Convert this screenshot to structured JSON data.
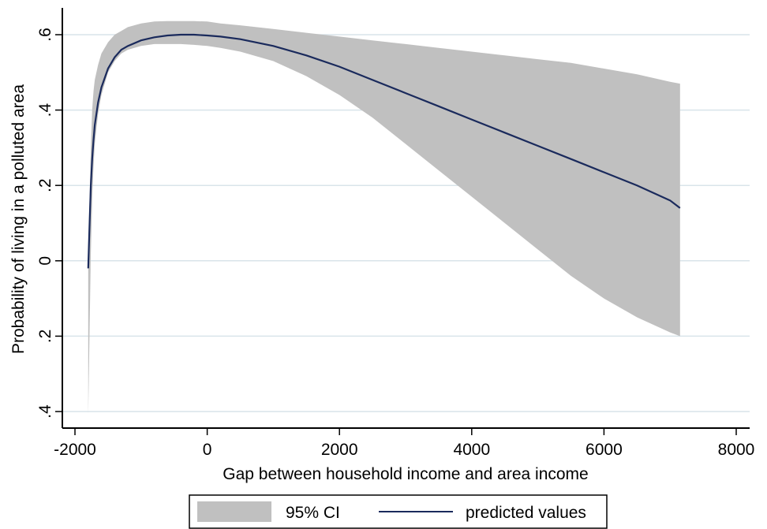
{
  "chart_data": {
    "type": "line",
    "xlabel": "Gap between household income and area income",
    "ylabel": "Probability of living in a polluted area",
    "xlim": [
      -2000,
      8000
    ],
    "ylim": [
      -0.4,
      0.6
    ],
    "x_ticks": [
      -2000,
      0,
      2000,
      4000,
      6000,
      8000
    ],
    "x_tick_labels": [
      "-2000",
      "0",
      "2000",
      "4000",
      "6000",
      "8000"
    ],
    "y_ticks": [
      -0.4,
      -0.2,
      0,
      0.2,
      0.4,
      0.6
    ],
    "y_tick_labels": [
      ".4",
      ".2",
      "0",
      ".2",
      ".4",
      ".6"
    ],
    "grid": true,
    "legend_position": "bottom",
    "colors": {
      "ci_fill": "#c0c0c0",
      "line": "#1a2a5c",
      "grid": "#d9e4ea"
    },
    "series": [
      {
        "name": "95% CI",
        "kind": "band",
        "x": [
          -1800,
          -1780,
          -1760,
          -1740,
          -1720,
          -1700,
          -1650,
          -1600,
          -1500,
          -1400,
          -1300,
          -1200,
          -1000,
          -800,
          -600,
          -400,
          -200,
          0,
          200,
          500,
          1000,
          1500,
          2000,
          2500,
          3000,
          3500,
          4000,
          4500,
          5000,
          5500,
          6000,
          6500,
          7000,
          7150
        ],
        "lower": [
          -0.41,
          -0.2,
          0.02,
          0.16,
          0.25,
          0.31,
          0.39,
          0.44,
          0.5,
          0.53,
          0.55,
          0.56,
          0.57,
          0.575,
          0.575,
          0.575,
          0.573,
          0.57,
          0.565,
          0.555,
          0.53,
          0.49,
          0.44,
          0.38,
          0.31,
          0.24,
          0.17,
          0.1,
          0.03,
          -0.04,
          -0.1,
          -0.15,
          -0.19,
          -0.2
        ],
        "upper": [
          0.04,
          0.15,
          0.3,
          0.4,
          0.45,
          0.48,
          0.52,
          0.55,
          0.58,
          0.6,
          0.61,
          0.62,
          0.63,
          0.635,
          0.636,
          0.636,
          0.636,
          0.635,
          0.63,
          0.625,
          0.615,
          0.605,
          0.595,
          0.585,
          0.575,
          0.565,
          0.555,
          0.545,
          0.535,
          0.525,
          0.51,
          0.495,
          0.475,
          0.47
        ]
      },
      {
        "name": "predicted values",
        "kind": "line",
        "x": [
          -1800,
          -1780,
          -1760,
          -1740,
          -1720,
          -1700,
          -1650,
          -1600,
          -1500,
          -1400,
          -1300,
          -1200,
          -1000,
          -800,
          -600,
          -400,
          -200,
          0,
          200,
          500,
          1000,
          1500,
          2000,
          2500,
          3000,
          3500,
          4000,
          4500,
          5000,
          5500,
          6000,
          6500,
          7000,
          7150
        ],
        "y": [
          -0.02,
          0.09,
          0.2,
          0.27,
          0.32,
          0.36,
          0.42,
          0.46,
          0.51,
          0.54,
          0.56,
          0.57,
          0.585,
          0.593,
          0.598,
          0.6,
          0.6,
          0.598,
          0.595,
          0.588,
          0.57,
          0.545,
          0.515,
          0.48,
          0.445,
          0.41,
          0.375,
          0.34,
          0.305,
          0.27,
          0.235,
          0.2,
          0.16,
          0.14
        ]
      }
    ]
  }
}
